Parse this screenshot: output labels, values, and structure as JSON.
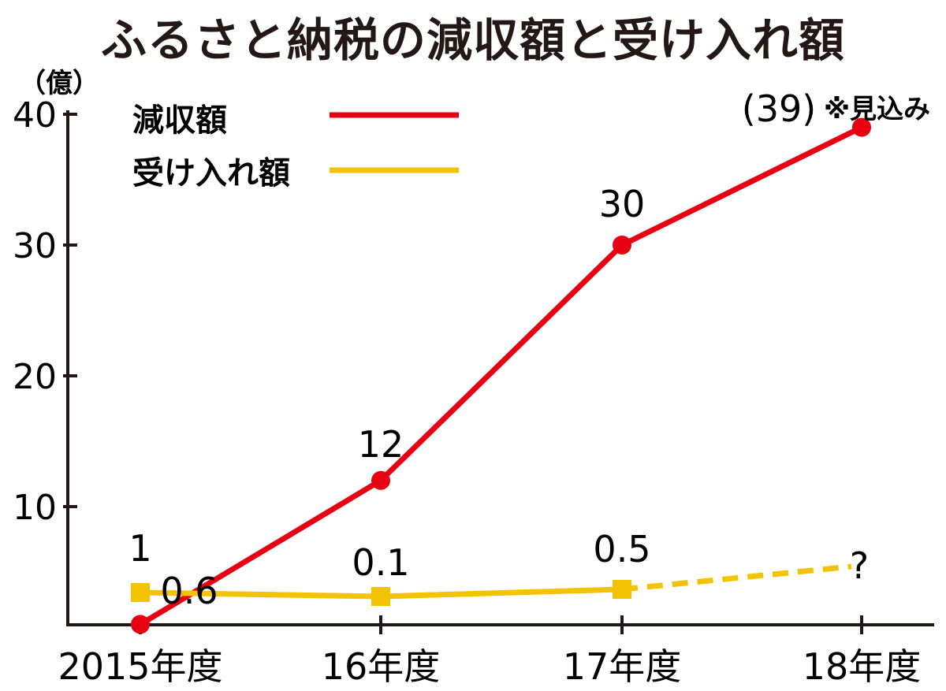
{
  "title": "ふるさと納税の減収額と受け入れ額",
  "unit": "（億）",
  "colors": {
    "red": "#e60012",
    "yellow": "#f4c300",
    "axis": "#231815"
  },
  "chart_data": {
    "type": "line",
    "title": "ふるさと納税の減収額と受け入れ額",
    "ylabel": "（億）",
    "ylim": [
      0,
      40
    ],
    "yticks": [
      10,
      20,
      30,
      40
    ],
    "ytick_labels": [
      "10",
      "20",
      "30",
      "40"
    ],
    "categories": [
      "2015年度",
      "16年度",
      "17年度",
      "18年度"
    ],
    "series": [
      {
        "name": "減収額",
        "color": "#e60012",
        "marker": "circle",
        "values": [
          1,
          12,
          30,
          39
        ],
        "data_labels": [
          "1",
          "12",
          "30",
          "(39)"
        ],
        "annotation": "※見込み"
      },
      {
        "name": "受け入れ額",
        "color": "#f4c300",
        "marker": "square",
        "values": [
          0.6,
          0.1,
          0.5,
          null
        ],
        "data_labels": [
          "0.6",
          "0.1",
          "0.5",
          "?"
        ]
      }
    ],
    "legend_position": "top-left",
    "grid": false
  }
}
